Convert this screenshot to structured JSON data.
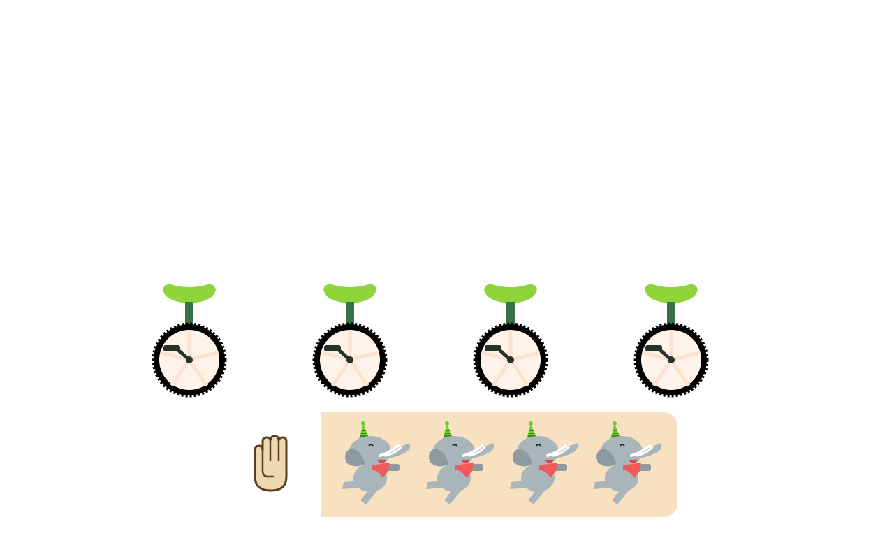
{
  "scene": {
    "top_row": {
      "object": "unicycle",
      "count": 4,
      "colors": {
        "seat": "#8fd43a",
        "post": "#3a7048",
        "tire": "#000000",
        "rim_fill": "#fff3ea",
        "spokes": "#fde2cf",
        "pedal": "#263328"
      }
    },
    "tray": {
      "hand_icon": "raised-hand-icon",
      "object": "elephant",
      "count": 4,
      "colors": {
        "panel": "#f8e1c0",
        "elephant_body": "#a8b6bb",
        "elephant_dark": "#8d9ba1",
        "scarf": "#f05a5a",
        "hat": "#6fcf2e",
        "tusk": "#ffffff"
      }
    }
  }
}
